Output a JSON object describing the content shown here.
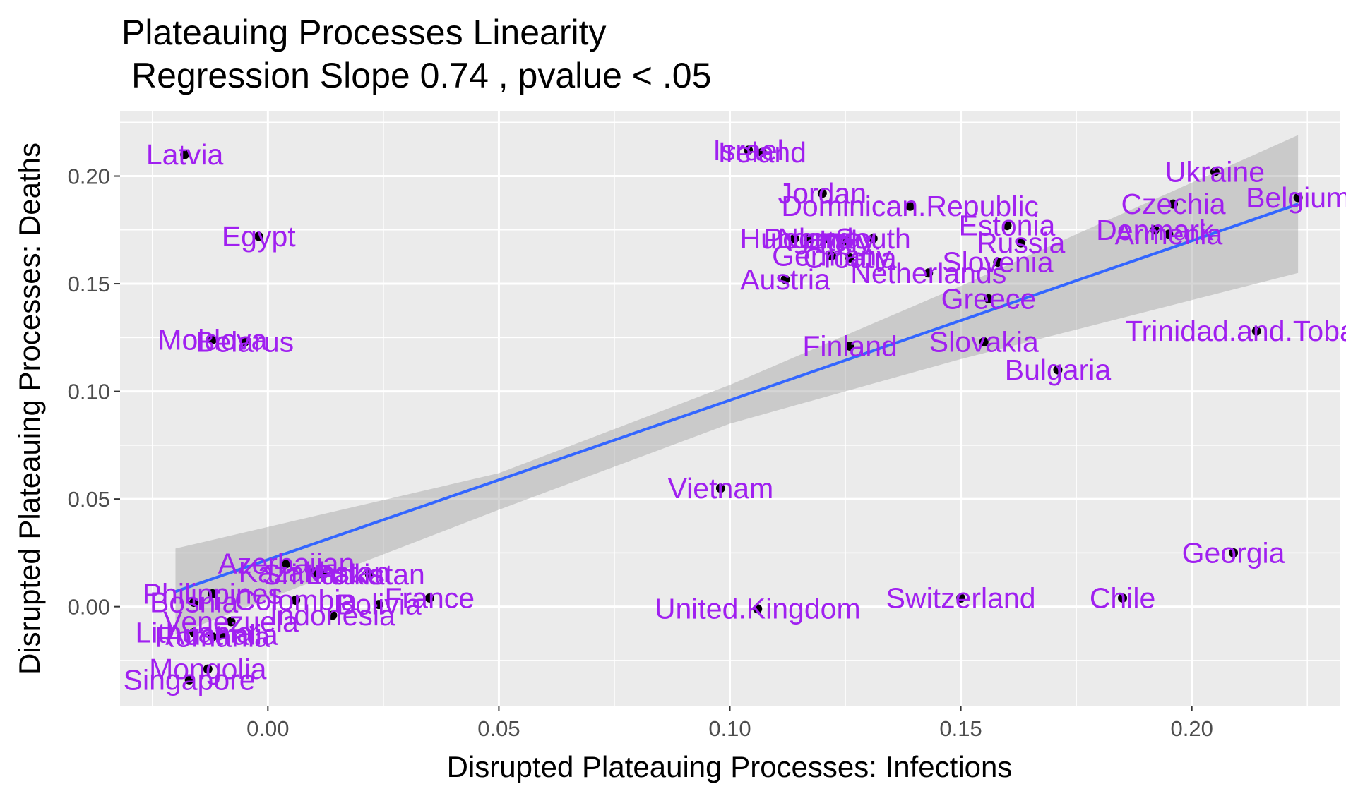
{
  "chart_data": {
    "type": "scatter",
    "title": "Plateauing Processes Linearity",
    "subtitle": "Regression Slope 0.74 , pvalue  < .05",
    "xlabel": "Disrupted Plateauing Processes: Infections",
    "ylabel": "Disrupted Plateauing Processes: Deaths",
    "xlim": [
      -0.032,
      0.232
    ],
    "ylim": [
      -0.046,
      0.23
    ],
    "x_ticks": [
      0.0,
      0.05,
      0.1,
      0.15,
      0.2
    ],
    "x_tick_labels": [
      "0.00",
      "0.05",
      "0.10",
      "0.15",
      "0.20"
    ],
    "y_ticks": [
      0.0,
      0.05,
      0.1,
      0.15,
      0.2
    ],
    "y_tick_labels": [
      "0.00",
      "0.05",
      "0.10",
      "0.15",
      "0.20"
    ],
    "grid": true,
    "colors": {
      "panel": "#ebebeb",
      "grid": "#ffffff",
      "point": "#000000",
      "label": "#a020f0",
      "fit_line": "#3366ff",
      "confidence_band": "#999999"
    },
    "regression": {
      "slope": 0.74,
      "line": [
        [
          -0.02,
          0.007
        ],
        [
          0.223,
          0.187
        ]
      ],
      "band_upper": [
        [
          -0.02,
          0.027
        ],
        [
          0.05,
          0.062
        ],
        [
          0.1,
          0.103
        ],
        [
          0.15,
          0.149
        ],
        [
          0.223,
          0.219
        ]
      ],
      "band_lower": [
        [
          -0.02,
          -0.013
        ],
        [
          0.05,
          0.045
        ],
        [
          0.1,
          0.085
        ],
        [
          0.15,
          0.115
        ],
        [
          0.223,
          0.155
        ]
      ]
    },
    "points": [
      {
        "label": "Latvia",
        "x": -0.018,
        "y": 0.21
      },
      {
        "label": "Egypt",
        "x": -0.002,
        "y": 0.172
      },
      {
        "label": "Moldova",
        "x": -0.012,
        "y": 0.124
      },
      {
        "label": "Belarus",
        "x": -0.005,
        "y": 0.123
      },
      {
        "label": "Israel",
        "x": 0.104,
        "y": 0.212
      },
      {
        "label": "Ireland",
        "x": 0.107,
        "y": 0.211
      },
      {
        "label": "Jordan",
        "x": 0.12,
        "y": 0.192
      },
      {
        "label": "Dominican.Republic",
        "x": 0.139,
        "y": 0.186
      },
      {
        "label": "Hungary",
        "x": 0.114,
        "y": 0.171
      },
      {
        "label": "Poland",
        "x": 0.117,
        "y": 0.171
      },
      {
        "label": "Norway",
        "x": 0.121,
        "y": 0.171
      },
      {
        "label": "Italy",
        "x": 0.125,
        "y": 0.17
      },
      {
        "label": "South",
        "x": 0.131,
        "y": 0.171
      },
      {
        "label": "Russia",
        "x": 0.163,
        "y": 0.169
      },
      {
        "label": "Germany",
        "x": 0.122,
        "y": 0.163
      },
      {
        "label": "Croatia",
        "x": 0.126,
        "y": 0.162
      },
      {
        "label": "Netherlands",
        "x": 0.143,
        "y": 0.155
      },
      {
        "label": "Austria",
        "x": 0.112,
        "y": 0.152
      },
      {
        "label": "Estonia",
        "x": 0.16,
        "y": 0.177
      },
      {
        "label": "Slovenia",
        "x": 0.158,
        "y": 0.16
      },
      {
        "label": "Greece",
        "x": 0.156,
        "y": 0.143
      },
      {
        "label": "Slovakia",
        "x": 0.155,
        "y": 0.123
      },
      {
        "label": "Finland",
        "x": 0.126,
        "y": 0.121
      },
      {
        "label": "Bulgaria",
        "x": 0.171,
        "y": 0.11
      },
      {
        "label": "Ukraine",
        "x": 0.205,
        "y": 0.202
      },
      {
        "label": "Czechia",
        "x": 0.196,
        "y": 0.187
      },
      {
        "label": "Belgium",
        "x": 0.223,
        "y": 0.19
      },
      {
        "label": "Denmark",
        "x": 0.192,
        "y": 0.175
      },
      {
        "label": "Armenia",
        "x": 0.195,
        "y": 0.173
      },
      {
        "label": "Trinidad.and.Tobago",
        "x": 0.214,
        "y": 0.128
      },
      {
        "label": "Vietnam",
        "x": 0.098,
        "y": 0.055
      },
      {
        "label": "Georgia",
        "x": 0.209,
        "y": 0.025
      },
      {
        "label": "Chile",
        "x": 0.185,
        "y": 0.004
      },
      {
        "label": "Switzerland",
        "x": 0.15,
        "y": 0.004
      },
      {
        "label": "United.Kingdom",
        "x": 0.106,
        "y": -0.001
      },
      {
        "label": "Azerbaijan",
        "x": 0.004,
        "y": 0.02
      },
      {
        "label": "Sri.Lanka",
        "x": 0.012,
        "y": 0.015
      },
      {
        "label": "Pakistan",
        "x": 0.022,
        "y": 0.015
      },
      {
        "label": "Kazakhstan",
        "x": 0.01,
        "y": 0.016
      },
      {
        "label": "Philippines",
        "x": -0.012,
        "y": 0.006
      },
      {
        "label": "Bosnia",
        "x": -0.016,
        "y": 0.002
      },
      {
        "label": "France",
        "x": 0.035,
        "y": 0.004
      },
      {
        "label": "Bolivia",
        "x": 0.024,
        "y": 0.001
      },
      {
        "label": "Colombia",
        "x": 0.006,
        "y": 0.003
      },
      {
        "label": "Indonesia",
        "x": 0.014,
        "y": -0.004
      },
      {
        "label": "Venezuela",
        "x": -0.008,
        "y": -0.007
      },
      {
        "label": "Lithuania",
        "x": -0.016,
        "y": -0.012
      },
      {
        "label": "Romania",
        "x": -0.012,
        "y": -0.014
      },
      {
        "label": "Australia",
        "x": -0.01,
        "y": -0.013
      },
      {
        "label": "Mongolia",
        "x": -0.013,
        "y": -0.029
      },
      {
        "label": "Singapore",
        "x": -0.017,
        "y": -0.034
      }
    ]
  }
}
